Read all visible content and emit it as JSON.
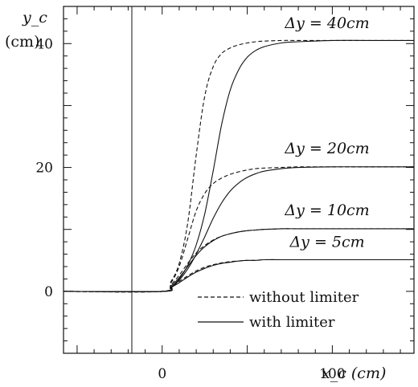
{
  "chart_data": {
    "type": "line",
    "xlabel": "x_c (cm)",
    "ylabel_line1": "y_c",
    "ylabel_line2": "(cm)",
    "xlim": [
      -58,
      148
    ],
    "ylim": [
      -10,
      46
    ],
    "x_ticks": [
      0,
      100
    ],
    "x_tick_labels": [
      "0",
      "100"
    ],
    "y_ticks": [
      0,
      20,
      40
    ],
    "y_tick_labels": [
      "0",
      "20",
      "40"
    ],
    "grid": false,
    "legend_position": "bottom-right",
    "legend": [
      {
        "label": "without limiter",
        "style": "dashed"
      },
      {
        "label": "with limiter",
        "style": "solid"
      }
    ],
    "annotations": [
      {
        "text": "Δy = 40cm",
        "x": 97,
        "y": 42.5
      },
      {
        "text": "Δy = 20cm",
        "x": 97,
        "y": 22.3
      },
      {
        "text": "Δy = 10cm",
        "x": 97,
        "y": 12.3
      },
      {
        "text": "Δy = 5cm",
        "x": 97,
        "y": 7.2
      }
    ],
    "x": [
      -58,
      0,
      5,
      10,
      15,
      20,
      25,
      30,
      35,
      40,
      45,
      50,
      55,
      60,
      70,
      80,
      100,
      120,
      148
    ],
    "series": [
      {
        "group": "Δy = 40cm",
        "style": "dashed",
        "values": [
          0,
          0,
          1.5,
          4.5,
          11,
          22,
          31.5,
          36.3,
          38.4,
          39.3,
          39.8,
          40.1,
          40.3,
          40.4,
          40.5,
          40.5,
          40.5,
          40.5,
          40.5
        ]
      },
      {
        "group": "Δy = 40cm",
        "style": "solid",
        "values": [
          0,
          0,
          0.6,
          2.0,
          4.2,
          7.5,
          12.5,
          19.5,
          27.0,
          32.5,
          35.8,
          37.8,
          38.9,
          39.5,
          40.1,
          40.3,
          40.5,
          40.5,
          40.5
        ]
      },
      {
        "group": "Δy = 20cm",
        "style": "dashed",
        "values": [
          0,
          0,
          1.3,
          4.0,
          8.5,
          13.0,
          15.8,
          17.4,
          18.3,
          18.9,
          19.3,
          19.6,
          19.8,
          19.9,
          20.0,
          20.1,
          20.1,
          20.1,
          20.1
        ]
      },
      {
        "group": "Δy = 20cm",
        "style": "solid",
        "values": [
          0,
          0,
          0.6,
          1.8,
          3.6,
          6.0,
          8.8,
          11.8,
          14.3,
          16.2,
          17.5,
          18.4,
          19.0,
          19.4,
          19.8,
          20.0,
          20.1,
          20.1,
          20.1
        ]
      },
      {
        "group": "Δy = 10cm",
        "style": "dashed",
        "values": [
          0,
          0,
          1.0,
          2.6,
          4.5,
          6.2,
          7.4,
          8.3,
          8.9,
          9.3,
          9.6,
          9.8,
          9.9,
          10.0,
          10.1,
          10.1,
          10.1,
          10.1,
          10.1
        ]
      },
      {
        "group": "Δy = 10cm",
        "style": "solid",
        "values": [
          0,
          0,
          0.8,
          2.2,
          4.0,
          5.8,
          7.2,
          8.2,
          8.9,
          9.3,
          9.6,
          9.8,
          9.9,
          10.0,
          10.1,
          10.1,
          10.1,
          10.1,
          10.1
        ]
      },
      {
        "group": "Δy = 5cm",
        "style": "dashed",
        "values": [
          0,
          0,
          0.7,
          1.6,
          2.5,
          3.3,
          3.9,
          4.3,
          4.6,
          4.8,
          4.9,
          5.0,
          5.0,
          5.1,
          5.1,
          5.1,
          5.1,
          5.1,
          5.1
        ]
      },
      {
        "group": "Δy = 5cm",
        "style": "solid",
        "values": [
          0,
          0,
          0.6,
          1.4,
          2.3,
          3.1,
          3.7,
          4.2,
          4.5,
          4.7,
          4.9,
          5.0,
          5.0,
          5.1,
          5.1,
          5.1,
          5.1,
          5.1,
          5.1
        ]
      }
    ]
  }
}
